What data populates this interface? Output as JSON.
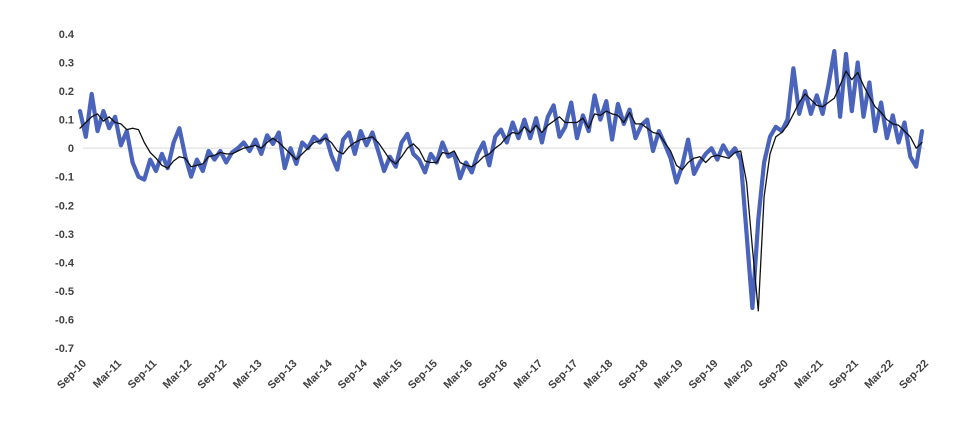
{
  "chart_data": {
    "type": "line",
    "title": "",
    "legend": "none",
    "grid": "zero-line-only",
    "background": "#ffffff",
    "x_axis": {
      "start": "Sep-10",
      "end": "Sep-22",
      "frequency": "monthly",
      "tick_interval_months": 6,
      "tick_labels": [
        "Sep-10",
        "Mar-11",
        "Sep-11",
        "Mar-12",
        "Sep-12",
        "Mar-13",
        "Sep-13",
        "Mar-14",
        "Sep-14",
        "Mar-15",
        "Sep-15",
        "Mar-16",
        "Sep-16",
        "Mar-17",
        "Sep-17",
        "Mar-18",
        "Sep-18",
        "Mar-19",
        "Sep-19",
        "Mar-20",
        "Sep-20",
        "Mar-21",
        "Sep-21",
        "Mar-22",
        "Sep-22"
      ],
      "label_rotation_deg": -45
    },
    "y_axis": {
      "ylim": [
        -0.7,
        0.4
      ],
      "tick_step": 0.1,
      "tick_values": [
        0.4,
        0.3,
        0.2,
        0.1,
        0,
        -0.1,
        -0.2,
        -0.3,
        -0.4,
        -0.5,
        -0.6,
        -0.7
      ],
      "tick_labels": [
        "0.4",
        "0.3",
        "0.2",
        "0.1",
        "0",
        "-0.1",
        "-0.2",
        "-0.3",
        "-0.4",
        "-0.5",
        "-0.6",
        "-0.7"
      ]
    },
    "colors": {
      "series_blue": "#4a63bb",
      "series_black": "#111111",
      "zero_gridline": "#d9d9d9",
      "tick_text": "#404040"
    },
    "series": [
      {
        "name": "monthly-series-blue",
        "color": "#4a63bb",
        "stroke_width": 4.2,
        "values": [
          0.13,
          0.04,
          0.19,
          0.06,
          0.13,
          0.07,
          0.11,
          0.01,
          0.06,
          -0.05,
          -0.1,
          -0.11,
          -0.04,
          -0.08,
          -0.02,
          -0.07,
          0.02,
          0.07,
          -0.03,
          -0.1,
          -0.04,
          -0.08,
          -0.01,
          -0.04,
          -0.01,
          -0.05,
          -0.015,
          0.0,
          0.02,
          -0.01,
          0.03,
          -0.02,
          0.045,
          0.015,
          0.055,
          -0.07,
          0.0,
          -0.055,
          0.02,
          0.0,
          0.04,
          0.02,
          0.045,
          -0.025,
          -0.075,
          0.03,
          0.055,
          -0.02,
          0.06,
          0.01,
          0.055,
          -0.01,
          -0.08,
          -0.03,
          -0.065,
          0.02,
          0.05,
          -0.02,
          -0.04,
          -0.085,
          -0.02,
          -0.05,
          0.02,
          -0.03,
          -0.02,
          -0.105,
          -0.05,
          -0.085,
          -0.02,
          0.02,
          -0.06,
          0.04,
          0.065,
          0.02,
          0.09,
          0.035,
          0.1,
          0.035,
          0.105,
          0.02,
          0.11,
          0.15,
          0.04,
          0.075,
          0.16,
          0.035,
          0.115,
          0.06,
          0.185,
          0.1,
          0.165,
          0.03,
          0.155,
          0.085,
          0.135,
          0.035,
          0.08,
          0.1,
          -0.01,
          0.06,
          0.015,
          -0.035,
          -0.12,
          -0.06,
          0.03,
          -0.09,
          -0.05,
          -0.02,
          0.0,
          -0.04,
          0.01,
          -0.025,
          0.0,
          -0.04,
          -0.3,
          -0.56,
          -0.25,
          -0.05,
          0.04,
          0.075,
          0.06,
          0.1,
          0.28,
          0.12,
          0.2,
          0.12,
          0.185,
          0.12,
          0.22,
          0.34,
          0.11,
          0.33,
          0.13,
          0.3,
          0.11,
          0.23,
          0.06,
          0.16,
          0.035,
          0.115,
          0.02,
          0.09,
          -0.03,
          -0.065,
          0.06
        ]
      },
      {
        "name": "smoothed-series-black",
        "color": "#111111",
        "stroke_width": 1.3,
        "values": [
          0.07,
          0.09,
          0.11,
          0.12,
          0.095,
          0.11,
          0.09,
          0.085,
          0.065,
          0.07,
          0.065,
          0.02,
          -0.015,
          -0.035,
          -0.06,
          -0.07,
          -0.045,
          -0.03,
          -0.035,
          -0.065,
          -0.06,
          -0.055,
          -0.03,
          -0.025,
          -0.015,
          -0.02,
          -0.02,
          -0.01,
          0.0,
          0.005,
          0.01,
          0.0,
          0.02,
          0.035,
          0.02,
          0.0,
          -0.02,
          -0.04,
          -0.02,
          0.0,
          0.02,
          0.025,
          0.035,
          0.02,
          -0.01,
          -0.02,
          0.005,
          0.02,
          0.03,
          0.035,
          0.04,
          0.02,
          -0.01,
          -0.04,
          -0.055,
          -0.03,
          0.0,
          0.015,
          -0.005,
          -0.045,
          -0.05,
          -0.05,
          -0.015,
          -0.02,
          -0.01,
          -0.05,
          -0.06,
          -0.065,
          -0.05,
          -0.03,
          -0.02,
          0.0,
          0.015,
          0.04,
          0.055,
          0.05,
          0.075,
          0.055,
          0.08,
          0.055,
          0.08,
          0.095,
          0.11,
          0.09,
          0.09,
          0.09,
          0.105,
          0.07,
          0.12,
          0.115,
          0.13,
          0.12,
          0.115,
          0.09,
          0.125,
          0.085,
          0.085,
          0.07,
          0.055,
          0.05,
          0.02,
          -0.01,
          -0.06,
          -0.075,
          -0.05,
          -0.035,
          -0.03,
          -0.05,
          -0.03,
          -0.025,
          -0.03,
          -0.035,
          -0.015,
          -0.01,
          -0.12,
          -0.35,
          -0.57,
          -0.17,
          -0.02,
          0.04,
          0.055,
          0.08,
          0.12,
          0.16,
          0.19,
          0.17,
          0.15,
          0.145,
          0.16,
          0.175,
          0.22,
          0.27,
          0.24,
          0.265,
          0.22,
          0.18,
          0.145,
          0.125,
          0.1,
          0.085,
          0.08,
          0.06,
          0.04,
          0.0,
          0.02
        ]
      }
    ]
  }
}
